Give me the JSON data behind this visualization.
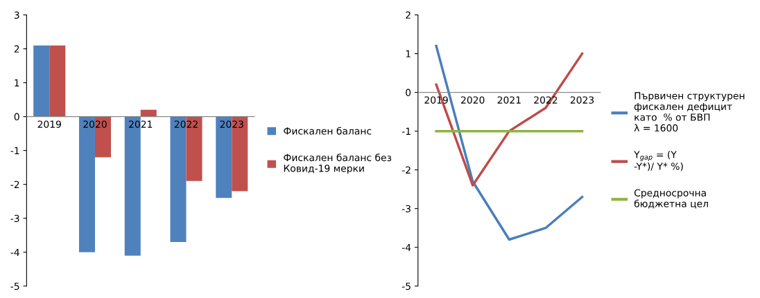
{
  "chart_data": [
    {
      "type": "bar",
      "categories": [
        "2019",
        "2020",
        "2021",
        "2022",
        "2023"
      ],
      "ylim": [
        -5,
        3
      ],
      "yticks": [
        -5,
        -4,
        -3,
        -2,
        -1,
        0,
        1,
        2,
        3
      ],
      "grid": false,
      "legend": "right",
      "series": [
        {
          "name": "Фискален баланс",
          "color": "#4f81bd",
          "values": [
            2.1,
            -4.0,
            -4.1,
            -3.7,
            -2.4
          ]
        },
        {
          "name": "Фискален баланс без Ковид-19 мерки",
          "color": "#c0504d",
          "values": [
            2.1,
            -1.2,
            0.2,
            -1.9,
            -2.2
          ]
        }
      ]
    },
    {
      "type": "line",
      "categories": [
        "2019",
        "2020",
        "2021",
        "2022",
        "2023"
      ],
      "ylim": [
        -5,
        2
      ],
      "yticks": [
        -5,
        -4,
        -3,
        -2,
        -1,
        0,
        1,
        2
      ],
      "grid": false,
      "legend": "right",
      "marker": "none",
      "series": [
        {
          "name": "Първичен структурен фискален дефицит като  % от БВП     λ = 1600",
          "color": "#4a7ebb",
          "values": [
            1.2,
            -2.3,
            -3.8,
            -3.5,
            -2.7
          ]
        },
        {
          "name": "Y$_{gap}$ = (Y -Y*)/ Y* %)",
          "color": "#be4b48",
          "values": [
            0.2,
            -2.4,
            -1.0,
            -0.4,
            1.0
          ]
        },
        {
          "name": "Средносрочна бюджетна цел",
          "color": "#8db33f",
          "values": [
            -1,
            -1,
            -1,
            -1,
            -1
          ]
        }
      ]
    }
  ]
}
